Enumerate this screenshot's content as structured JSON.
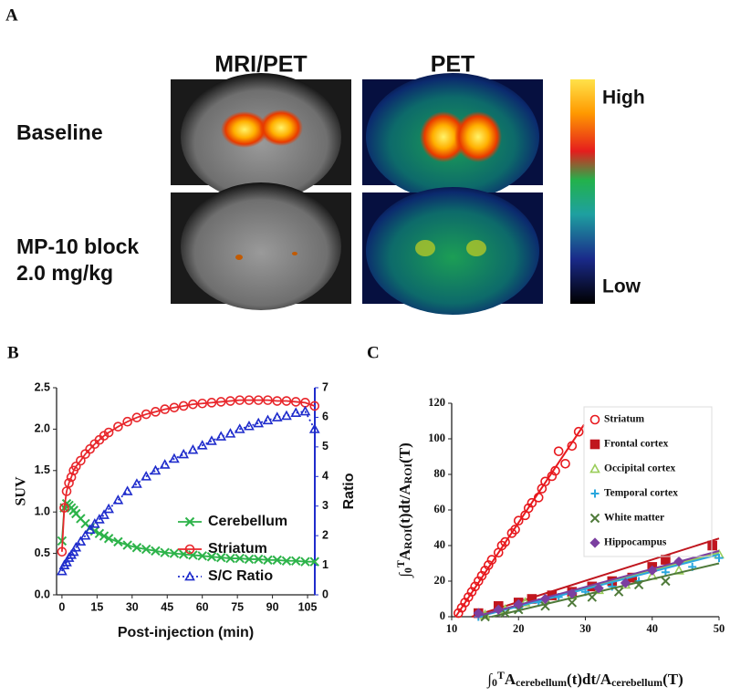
{
  "panel_a": {
    "label": "A",
    "columns": [
      "MRI/PET",
      "PET"
    ],
    "rows": [
      "Baseline",
      "MP-10 block",
      "2.0 mg/kg"
    ],
    "colorbar": {
      "high": "High",
      "low": "Low"
    }
  },
  "chart_data": [
    {
      "type": "line",
      "panel_label": "B",
      "xlabel": "Post-injection (min)",
      "ylabel": "SUV",
      "y2label": "Ratio",
      "xlim": [
        -2.3,
        108.1
      ],
      "xticks": [
        0,
        15,
        30,
        45,
        60,
        75,
        90,
        105
      ],
      "ylim": [
        0,
        2.5
      ],
      "yticks": [
        {
          "value": 0,
          "label": "0.0"
        },
        0.5,
        {
          "value": 1,
          "label": "1.0"
        },
        1.5,
        {
          "value": 2,
          "label": "2.0"
        },
        2.5
      ],
      "y2lim": [
        0,
        7
      ],
      "y2ticks": [
        0,
        1,
        2,
        3,
        4,
        5,
        6,
        7
      ],
      "y2color": "#1f2ccc",
      "legend": "lower right",
      "x": [
        0,
        1,
        2,
        3,
        4,
        5,
        6,
        8,
        10,
        12,
        14,
        16,
        18,
        20,
        24,
        28,
        32,
        36,
        40,
        44,
        48,
        52,
        56,
        60,
        64,
        68,
        72,
        76,
        80,
        84,
        88,
        92,
        96,
        100,
        104,
        108
      ],
      "series": [
        {
          "name": "Cerebellum",
          "color": "#2db34a",
          "marker": "x",
          "dash": false,
          "values": [
            0.65,
            1.05,
            1.1,
            1.08,
            1.05,
            1.02,
            0.98,
            0.92,
            0.86,
            0.81,
            0.77,
            0.74,
            0.71,
            0.68,
            0.64,
            0.6,
            0.57,
            0.55,
            0.53,
            0.51,
            0.5,
            0.49,
            0.48,
            0.47,
            0.46,
            0.45,
            0.44,
            0.44,
            0.43,
            0.43,
            0.42,
            0.42,
            0.41,
            0.41,
            0.4,
            0.4
          ]
        },
        {
          "name": "Striatum",
          "color": "#e8262b",
          "marker": "o",
          "dash": false,
          "values": [
            0.52,
            1.05,
            1.25,
            1.35,
            1.42,
            1.5,
            1.55,
            1.62,
            1.7,
            1.76,
            1.82,
            1.87,
            1.92,
            1.96,
            2.03,
            2.09,
            2.14,
            2.18,
            2.21,
            2.24,
            2.26,
            2.28,
            2.3,
            2.31,
            2.32,
            2.33,
            2.34,
            2.35,
            2.35,
            2.35,
            2.35,
            2.34,
            2.34,
            2.33,
            2.32,
            2.28
          ]
        },
        {
          "name": "S/C Ratio",
          "color": "#1f2ccc",
          "marker": "^",
          "dash": true,
          "axis": "y2",
          "values": [
            0.8,
            1.0,
            1.1,
            1.25,
            1.35,
            1.45,
            1.6,
            1.8,
            2.0,
            2.2,
            2.4,
            2.55,
            2.7,
            2.9,
            3.2,
            3.5,
            3.75,
            4.0,
            4.2,
            4.4,
            4.6,
            4.75,
            4.9,
            5.05,
            5.2,
            5.35,
            5.45,
            5.6,
            5.7,
            5.8,
            5.9,
            6.0,
            6.05,
            6.15,
            6.2,
            5.6
          ]
        }
      ]
    },
    {
      "type": "scatter",
      "panel_label": "C",
      "xlabel": [
        "∫",
        "0",
        "T",
        "A",
        "cerebellum",
        "(t)dt/A",
        "cerebellum",
        "(T)"
      ],
      "ylabel": [
        "∫",
        "0",
        "T",
        "A",
        "ROI",
        "(t)dt/A",
        "ROI",
        "(T)"
      ],
      "xlim": [
        10,
        50
      ],
      "xticks": [
        10,
        20,
        30,
        40,
        50
      ],
      "ylim": [
        0,
        120
      ],
      "yticks": [
        0,
        20,
        40,
        60,
        80,
        100,
        120
      ],
      "legend": "upper right",
      "series": [
        {
          "name": "Striatum",
          "color": "#e8191e",
          "marker": "o",
          "x": [
            11,
            11.5,
            12,
            12.5,
            13,
            13.5,
            14,
            14.5,
            15,
            15.5,
            16,
            17,
            17.5,
            18,
            19,
            19.5,
            20,
            21,
            21.5,
            22,
            23,
            23.5,
            24,
            25,
            25.5,
            26,
            27,
            28,
            29
          ],
          "values": [
            2,
            5,
            8,
            11,
            14,
            17,
            20,
            23,
            26,
            29,
            32,
            36,
            40,
            42,
            47,
            49,
            54,
            57,
            61,
            64,
            67,
            72,
            76,
            79,
            82,
            93,
            86,
            96,
            104
          ],
          "fit_x": [
            10.6,
            29.8
          ],
          "fit_y": [
            0,
            108
          ]
        },
        {
          "name": "Frontal cortex",
          "color": "#c0161e",
          "marker": "s",
          "x": [
            14,
            17,
            20,
            22,
            25,
            28,
            31,
            34,
            37,
            40,
            42,
            49
          ],
          "values": [
            2,
            6,
            8,
            10,
            12,
            14,
            17,
            20,
            22,
            28,
            32,
            40
          ],
          "fit_x": [
            13,
            50
          ],
          "fit_y": [
            0,
            44
          ]
        },
        {
          "name": "Occipital cortex",
          "color": "#9acd5a",
          "marker": "^",
          "x": [
            15,
            18,
            21,
            24,
            28,
            32,
            36,
            40,
            44,
            50
          ],
          "values": [
            1,
            4,
            8,
            10,
            12,
            15,
            18,
            23,
            26,
            35
          ],
          "fit_x": [
            13.5,
            50
          ],
          "fit_y": [
            0,
            36
          ]
        },
        {
          "name": "Temporal cortex",
          "color": "#2aa7dd",
          "marker": "+",
          "x": [
            14,
            17,
            20,
            23,
            26,
            30,
            34,
            38,
            42,
            46,
            50
          ],
          "values": [
            0,
            3,
            5,
            8,
            11,
            14,
            17,
            20,
            25,
            28,
            33
          ],
          "fit_x": [
            14,
            50
          ],
          "fit_y": [
            0,
            35
          ]
        },
        {
          "name": "White matter",
          "color": "#4f7a3a",
          "marker": "x",
          "x": [
            15,
            18,
            20,
            24,
            28,
            31,
            35,
            38,
            42
          ],
          "values": [
            0,
            2,
            4,
            6,
            8,
            11,
            14,
            18,
            20
          ],
          "fit_x": [
            16,
            50
          ],
          "fit_y": [
            0,
            30
          ]
        },
        {
          "name": "Hippocampus",
          "color": "#7b3fa0",
          "marker": "D",
          "x": [
            14,
            17,
            20,
            24,
            28,
            32,
            36,
            40,
            44
          ],
          "values": [
            2,
            4,
            7,
            10,
            13,
            16,
            19,
            26,
            31
          ],
          "fit_x": [
            13.5,
            50
          ],
          "fit_y": [
            0,
            37
          ]
        }
      ]
    }
  ]
}
